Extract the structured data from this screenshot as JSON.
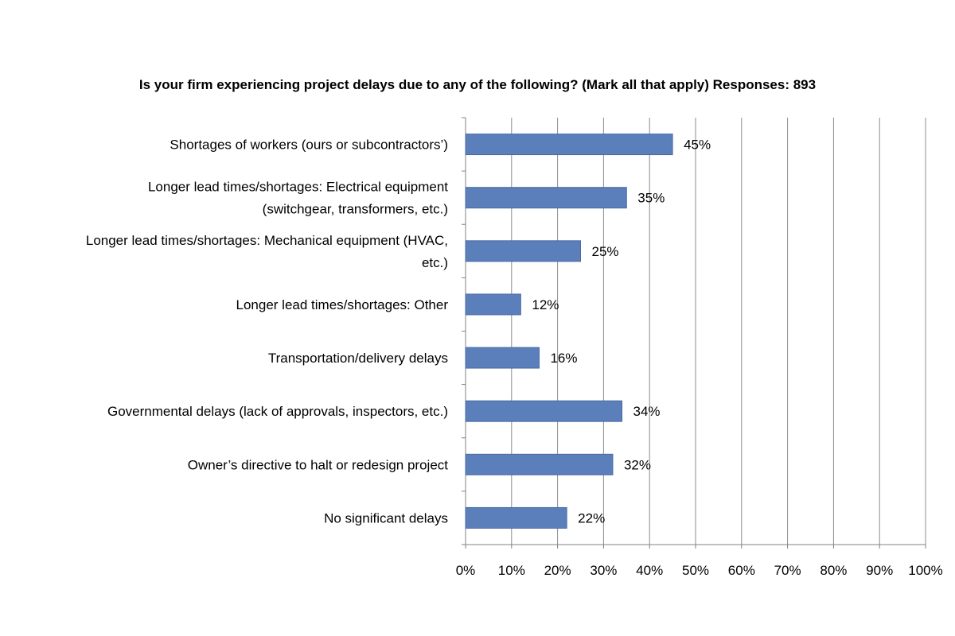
{
  "chart_data": {
    "type": "bar",
    "orientation": "horizontal",
    "title": "Is your firm experiencing project delays due to any of the following? (Mark all that apply) Responses: 893",
    "categories": [
      [
        "Shortages of workers (ours or subcontractors’)"
      ],
      [
        "Longer lead times/shortages: Electrical equipment",
        "(switchgear, transformers, etc.)"
      ],
      [
        "Longer lead times/shortages: Mechanical equipment (HVAC,",
        "etc.)"
      ],
      [
        "Longer lead times/shortages: Other"
      ],
      [
        "Transportation/delivery delays"
      ],
      [
        "Governmental delays (lack of approvals, inspectors, etc.)"
      ],
      [
        "Owner’s directive to halt or redesign project"
      ],
      [
        "No significant delays"
      ]
    ],
    "values": [
      45,
      35,
      25,
      12,
      16,
      34,
      32,
      22
    ],
    "data_labels": [
      "45%",
      "35%",
      "25%",
      "12%",
      "16%",
      "34%",
      "32%",
      "22%"
    ],
    "xlim": [
      0,
      100
    ],
    "xticks": [
      0,
      10,
      20,
      30,
      40,
      50,
      60,
      70,
      80,
      90,
      100
    ],
    "xtick_labels": [
      "0%",
      "10%",
      "20%",
      "30%",
      "40%",
      "50%",
      "60%",
      "70%",
      "80%",
      "90%",
      "100%"
    ],
    "xlabel": "",
    "ylabel": "",
    "grid": "vertical",
    "legend": "none",
    "colors": {
      "bar": "#5b7fba",
      "bar_edge": "#4a6ba5",
      "grid": "#8c8c8c",
      "axis": "#808080"
    }
  }
}
